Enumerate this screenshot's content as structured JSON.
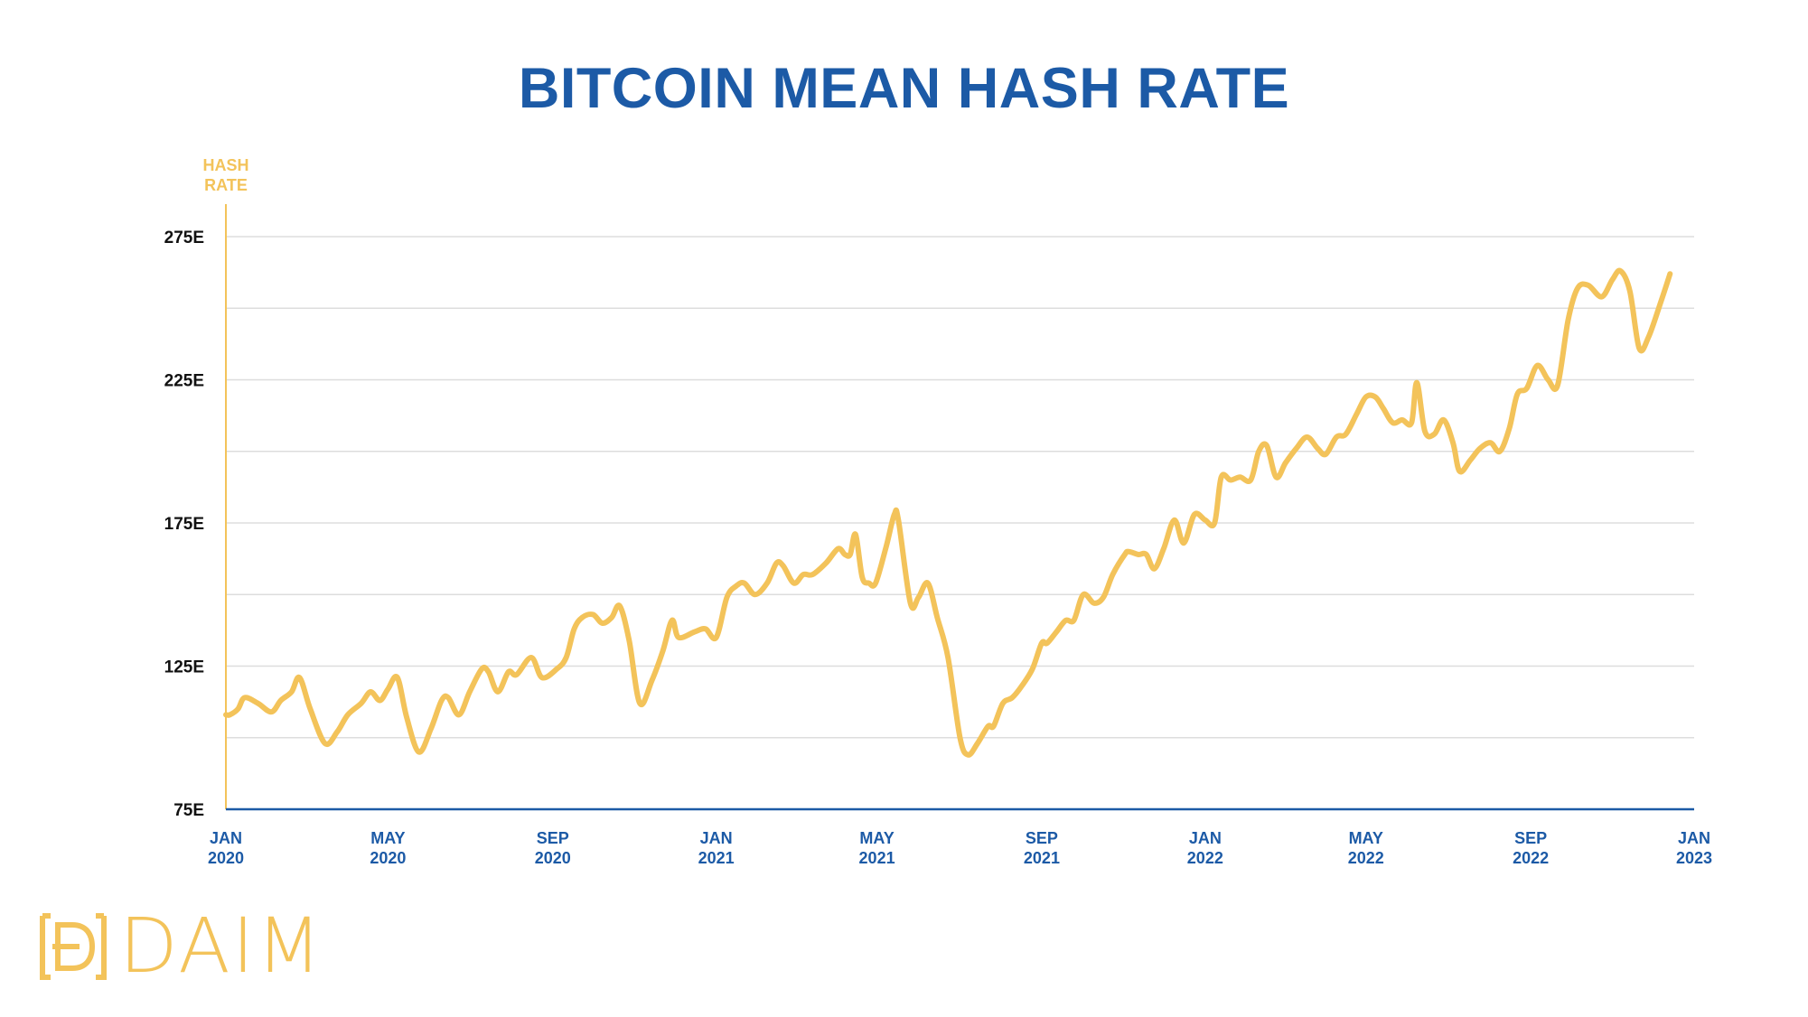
{
  "colors": {
    "title": "#1c5aa6",
    "line": "#f3c35a",
    "axis": "#1c5aa6",
    "grid": "#dddddd",
    "ytick": "#111111"
  },
  "logo": {
    "text": "DAIM"
  },
  "chart_data": {
    "type": "line",
    "title": "BITCOIN MEAN HASH RATE",
    "ylabel": "HASH RATE",
    "xlabel": "",
    "ylim": [
      75,
      275
    ],
    "xlim": [
      "2020-01",
      "2023-01"
    ],
    "y_ticks": [
      {
        "value": 275,
        "label": "275E"
      },
      {
        "value": 225,
        "label": "225E"
      },
      {
        "value": 175,
        "label": "175E"
      },
      {
        "value": 125,
        "label": "125E"
      },
      {
        "value": 75,
        "label": "75E"
      }
    ],
    "gridlines": [
      275,
      250,
      225,
      200,
      175,
      150,
      125,
      100
    ],
    "x_ticks": [
      {
        "month": "JAN",
        "year": "2020",
        "date": "2020-01"
      },
      {
        "month": "MAY",
        "year": "2020",
        "date": "2020-05"
      },
      {
        "month": "SEP",
        "year": "2020",
        "date": "2020-09"
      },
      {
        "month": "JAN",
        "year": "2021",
        "date": "2021-01"
      },
      {
        "month": "MAY",
        "year": "2021",
        "date": "2021-05"
      },
      {
        "month": "SEP",
        "year": "2021",
        "date": "2021-09"
      },
      {
        "month": "JAN",
        "year": "2022",
        "date": "2022-01"
      },
      {
        "month": "MAY",
        "year": "2022",
        "date": "2022-05"
      },
      {
        "month": "SEP",
        "year": "2022",
        "date": "2022-09"
      },
      {
        "month": "JAN",
        "year": "2023",
        "date": "2023-01"
      }
    ],
    "grid": true,
    "series": [
      {
        "values": [
          [
            "2020-01-01",
            108
          ],
          [
            "2020-01-04",
            108
          ],
          [
            "2020-01-10",
            110
          ],
          [
            "2020-01-15",
            114
          ],
          [
            "2020-01-25",
            112
          ],
          [
            "2020-02-04",
            109
          ],
          [
            "2020-02-11",
            113
          ],
          [
            "2020-02-19",
            116
          ],
          [
            "2020-02-25",
            121
          ],
          [
            "2020-03-04",
            110
          ],
          [
            "2020-03-15",
            98
          ],
          [
            "2020-03-24",
            102
          ],
          [
            "2020-04-01",
            108
          ],
          [
            "2020-04-11",
            112
          ],
          [
            "2020-04-18",
            116
          ],
          [
            "2020-04-25",
            113
          ],
          [
            "2020-05-01",
            117
          ],
          [
            "2020-05-08",
            121
          ],
          [
            "2020-05-15",
            107
          ],
          [
            "2020-05-24",
            95
          ],
          [
            "2020-06-02",
            103
          ],
          [
            "2020-06-10",
            113
          ],
          [
            "2020-06-15",
            114
          ],
          [
            "2020-06-23",
            108
          ],
          [
            "2020-07-01",
            116
          ],
          [
            "2020-07-10",
            124
          ],
          [
            "2020-07-15",
            123
          ],
          [
            "2020-07-22",
            116
          ],
          [
            "2020-07-30",
            123
          ],
          [
            "2020-08-05",
            122
          ],
          [
            "2020-08-16",
            128
          ],
          [
            "2020-08-24",
            121
          ],
          [
            "2020-09-04",
            124
          ],
          [
            "2020-09-11",
            128
          ],
          [
            "2020-09-17",
            138
          ],
          [
            "2020-09-23",
            142
          ],
          [
            "2020-10-01",
            143
          ],
          [
            "2020-10-08",
            140
          ],
          [
            "2020-10-15",
            142
          ],
          [
            "2020-10-21",
            146
          ],
          [
            "2020-10-28",
            134
          ],
          [
            "2020-11-05",
            112
          ],
          [
            "2020-11-14",
            120
          ],
          [
            "2020-11-22",
            130
          ],
          [
            "2020-11-29",
            141
          ],
          [
            "2020-12-04",
            135
          ],
          [
            "2020-12-16",
            137
          ],
          [
            "2020-12-24",
            138
          ],
          [
            "2021-01-01",
            135
          ],
          [
            "2021-01-09",
            149
          ],
          [
            "2021-01-16",
            153
          ],
          [
            "2021-01-22",
            154
          ],
          [
            "2021-01-30",
            150
          ],
          [
            "2021-02-08",
            154
          ],
          [
            "2021-02-15",
            161
          ],
          [
            "2021-02-20",
            160
          ],
          [
            "2021-02-28",
            154
          ],
          [
            "2021-03-07",
            157
          ],
          [
            "2021-03-14",
            157
          ],
          [
            "2021-03-24",
            161
          ],
          [
            "2021-04-02",
            166
          ],
          [
            "2021-04-07",
            164
          ],
          [
            "2021-04-11",
            164
          ],
          [
            "2021-04-15",
            171
          ],
          [
            "2021-04-20",
            156
          ],
          [
            "2021-04-25",
            154
          ],
          [
            "2021-04-30",
            154
          ],
          [
            "2021-05-08",
            167
          ],
          [
            "2021-05-14",
            178
          ],
          [
            "2021-05-17",
            176
          ],
          [
            "2021-05-26",
            147
          ],
          [
            "2021-06-01",
            149
          ],
          [
            "2021-06-08",
            154
          ],
          [
            "2021-06-15",
            142
          ],
          [
            "2021-06-23",
            128
          ],
          [
            "2021-07-02",
            100
          ],
          [
            "2021-07-08",
            94
          ],
          [
            "2021-07-15",
            98
          ],
          [
            "2021-07-23",
            104
          ],
          [
            "2021-07-27",
            104
          ],
          [
            "2021-08-03",
            112
          ],
          [
            "2021-08-10",
            114
          ],
          [
            "2021-08-17",
            118
          ],
          [
            "2021-08-25",
            124
          ],
          [
            "2021-09-01",
            133
          ],
          [
            "2021-09-05",
            133
          ],
          [
            "2021-09-12",
            137
          ],
          [
            "2021-09-19",
            141
          ],
          [
            "2021-09-25",
            141
          ],
          [
            "2021-10-02",
            150
          ],
          [
            "2021-10-10",
            147
          ],
          [
            "2021-10-17",
            149
          ],
          [
            "2021-10-24",
            157
          ],
          [
            "2021-11-02",
            164
          ],
          [
            "2021-11-05",
            165
          ],
          [
            "2021-11-12",
            164
          ],
          [
            "2021-11-18",
            164
          ],
          [
            "2021-11-24",
            159
          ],
          [
            "2021-12-01",
            166
          ],
          [
            "2021-12-09",
            176
          ],
          [
            "2021-12-16",
            168
          ],
          [
            "2021-12-24",
            178
          ],
          [
            "2022-01-01",
            176
          ],
          [
            "2022-01-08",
            175
          ],
          [
            "2022-01-13",
            191
          ],
          [
            "2022-01-20",
            190
          ],
          [
            "2022-01-27",
            191
          ],
          [
            "2022-02-04",
            190
          ],
          [
            "2022-02-10",
            200
          ],
          [
            "2022-02-16",
            202
          ],
          [
            "2022-02-23",
            191
          ],
          [
            "2022-03-02",
            196
          ],
          [
            "2022-03-10",
            201
          ],
          [
            "2022-03-18",
            205
          ],
          [
            "2022-03-26",
            201
          ],
          [
            "2022-04-01",
            199
          ],
          [
            "2022-04-09",
            205
          ],
          [
            "2022-04-16",
            206
          ],
          [
            "2022-04-24",
            213
          ],
          [
            "2022-05-01",
            219
          ],
          [
            "2022-05-08",
            219
          ],
          [
            "2022-05-14",
            215
          ],
          [
            "2022-05-21",
            210
          ],
          [
            "2022-05-28",
            211
          ],
          [
            "2022-06-04",
            210
          ],
          [
            "2022-06-08",
            224
          ],
          [
            "2022-06-14",
            207
          ],
          [
            "2022-06-21",
            206
          ],
          [
            "2022-06-28",
            211
          ],
          [
            "2022-07-05",
            203
          ],
          [
            "2022-07-10",
            193
          ],
          [
            "2022-07-18",
            197
          ],
          [
            "2022-07-25",
            201
          ],
          [
            "2022-08-02",
            203
          ],
          [
            "2022-08-09",
            200
          ],
          [
            "2022-08-16",
            208
          ],
          [
            "2022-08-22",
            220
          ],
          [
            "2022-08-29",
            222
          ],
          [
            "2022-09-06",
            230
          ],
          [
            "2022-09-14",
            225
          ],
          [
            "2022-09-21",
            223
          ],
          [
            "2022-09-29",
            246
          ],
          [
            "2022-10-06",
            257
          ],
          [
            "2022-10-14",
            258
          ],
          [
            "2022-10-24",
            254
          ],
          [
            "2022-11-01",
            260
          ],
          [
            "2022-11-07",
            263
          ],
          [
            "2022-11-14",
            256
          ],
          [
            "2022-11-21",
            236
          ],
          [
            "2022-11-28",
            240
          ],
          [
            "2022-12-07",
            252
          ],
          [
            "2022-12-14",
            262
          ]
        ]
      }
    ]
  }
}
